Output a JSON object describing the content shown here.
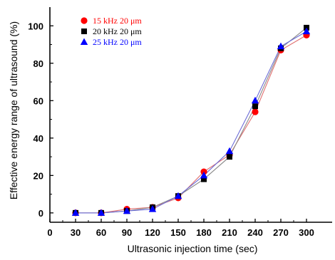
{
  "chart_data": {
    "type": "line",
    "xlabel": "Ultrasonic injection time (sec)",
    "ylabel": "Effective energy range of ultrasound (%)",
    "x_ticks": [
      0,
      30,
      60,
      90,
      120,
      150,
      180,
      210,
      240,
      270,
      300
    ],
    "y_ticks": [
      0,
      20,
      40,
      60,
      80,
      100
    ],
    "xlim": [
      0,
      330
    ],
    "ylim": [
      -5,
      110
    ],
    "grid": false,
    "legend_position": "top-left",
    "x": [
      30,
      60,
      90,
      120,
      150,
      180,
      210,
      240,
      270,
      300
    ],
    "series": [
      {
        "name": "15 kHz 20 μm",
        "color": "#ff0000",
        "marker": "circle",
        "line_color": "#e07070",
        "values": [
          0,
          0,
          2,
          3,
          8,
          22,
          31,
          54,
          87,
          95
        ]
      },
      {
        "name": "20 kHz 20 μm",
        "color": "#000000",
        "marker": "square",
        "line_color": "#888888",
        "values": [
          0,
          0,
          1,
          3,
          9,
          18,
          30,
          57,
          88,
          99
        ]
      },
      {
        "name": "25 kHz 20 μm",
        "color": "#0000ff",
        "marker": "triangle",
        "line_color": "#6b6bd6",
        "values": [
          0,
          0,
          1,
          2,
          9,
          20,
          33,
          60,
          89,
          97
        ]
      }
    ]
  }
}
